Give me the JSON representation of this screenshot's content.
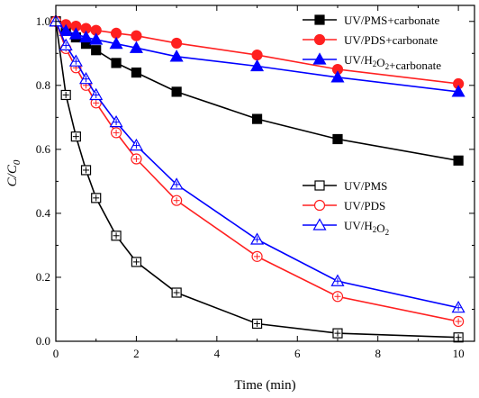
{
  "chart_data": {
    "type": "line",
    "title": "",
    "xlabel": "Time (min)",
    "ylabel": {
      "main": "C/C",
      "sub": "0"
    },
    "xlim": [
      0,
      10.4
    ],
    "ylim": [
      0,
      1.05
    ],
    "xticks": [
      0,
      2,
      4,
      6,
      8,
      10
    ],
    "yticks": [
      0.0,
      0.2,
      0.4,
      0.6,
      0.8,
      1.0
    ],
    "ytick_labels": [
      "0.0",
      "0.2",
      "0.4",
      "0.6",
      "0.8",
      "1.0"
    ],
    "grid": false,
    "legends": [
      {
        "placement": "top-right",
        "entries": [
          0,
          1,
          2
        ]
      },
      {
        "placement": "center-right",
        "entries": [
          3,
          4,
          5
        ]
      }
    ],
    "series": [
      {
        "name": "UV/PMS+carbonate",
        "legend_parts": [
          [
            "UV/PMS+carbonate",
            "n"
          ]
        ],
        "color": "#000000",
        "marker": "square",
        "filled": true,
        "x": [
          0,
          0.25,
          0.5,
          0.75,
          1,
          1.5,
          2,
          3,
          5,
          7,
          10
        ],
        "y": [
          1.0,
          0.97,
          0.95,
          0.93,
          0.91,
          0.87,
          0.84,
          0.78,
          0.695,
          0.632,
          0.565
        ]
      },
      {
        "name": "UV/PDS+carbonate",
        "legend_parts": [
          [
            "UV/PDS+carbonate",
            "n"
          ]
        ],
        "color": "#ff2020",
        "marker": "circle",
        "filled": true,
        "x": [
          0,
          0.25,
          0.5,
          0.75,
          1,
          1.5,
          2,
          3,
          5,
          7,
          10
        ],
        "y": [
          1.0,
          0.99,
          0.985,
          0.978,
          0.972,
          0.963,
          0.955,
          0.932,
          0.895,
          0.85,
          0.805
        ]
      },
      {
        "name": "UV/H2O2+carbonate",
        "legend_parts": [
          [
            "UV/H",
            "n"
          ],
          [
            "2",
            "sub"
          ],
          [
            "O",
            "n"
          ],
          [
            "2",
            "sub"
          ],
          [
            "+carbonate",
            "n"
          ]
        ],
        "color": "#0000ff",
        "marker": "triangle",
        "filled": true,
        "x": [
          0,
          0.25,
          0.5,
          0.75,
          1,
          1.5,
          2,
          3,
          5,
          7,
          10
        ],
        "y": [
          1.0,
          0.97,
          0.96,
          0.95,
          0.943,
          0.93,
          0.917,
          0.89,
          0.86,
          0.825,
          0.78
        ]
      },
      {
        "name": "UV/PMS",
        "legend_parts": [
          [
            "UV/PMS",
            "n"
          ]
        ],
        "color": "#000000",
        "marker": "square",
        "filled": false,
        "x": [
          0,
          0.25,
          0.5,
          0.75,
          1,
          1.5,
          2,
          3,
          5,
          7,
          10
        ],
        "y": [
          1.0,
          0.77,
          0.64,
          0.535,
          0.448,
          0.33,
          0.248,
          0.152,
          0.055,
          0.025,
          0.012
        ]
      },
      {
        "name": "UV/PDS",
        "legend_parts": [
          [
            "UV/PDS",
            "n"
          ]
        ],
        "color": "#ff2020",
        "marker": "circle",
        "filled": false,
        "x": [
          0,
          0.25,
          0.5,
          0.75,
          1,
          1.5,
          2,
          3,
          5,
          7,
          10
        ],
        "y": [
          1.0,
          0.915,
          0.855,
          0.8,
          0.745,
          0.652,
          0.57,
          0.44,
          0.265,
          0.14,
          0.062
        ]
      },
      {
        "name": "UV/H2O2",
        "legend_parts": [
          [
            "UV/H",
            "n"
          ],
          [
            "2",
            "sub"
          ],
          [
            "O",
            "n"
          ],
          [
            "2",
            "sub"
          ]
        ],
        "color": "#0000ff",
        "marker": "triangle",
        "filled": false,
        "x": [
          0,
          0.25,
          0.5,
          0.75,
          1,
          1.5,
          2,
          3,
          5,
          7,
          10
        ],
        "y": [
          1.0,
          0.925,
          0.875,
          0.82,
          0.77,
          0.685,
          0.612,
          0.49,
          0.318,
          0.188,
          0.105
        ]
      }
    ]
  }
}
